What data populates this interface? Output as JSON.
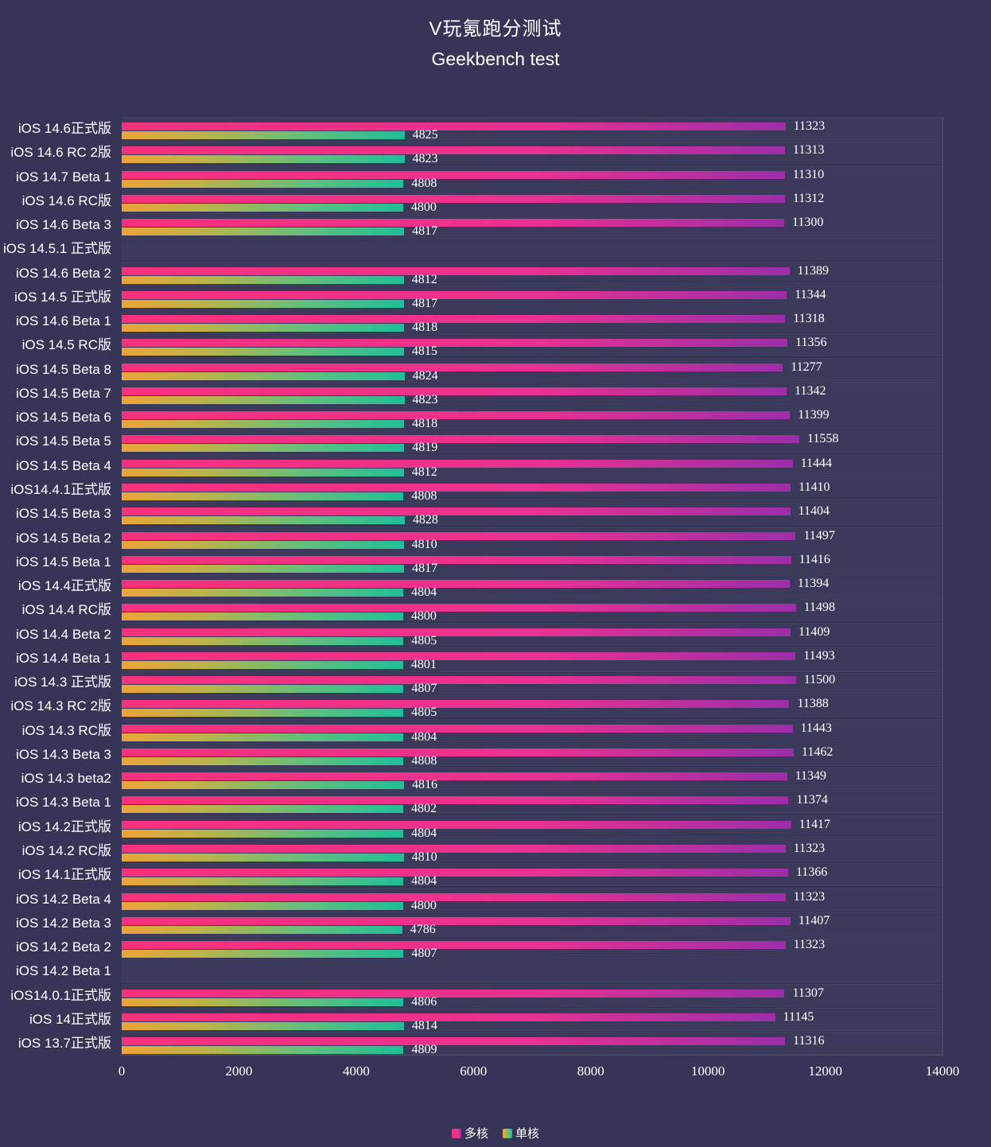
{
  "header": {
    "title": "V玩氪跑分测试",
    "subtitle": "Geekbench test"
  },
  "colors": {
    "background": "#373557",
    "text": "#ffffff",
    "plot_border": "rgba(255,255,255,0.14)",
    "multicore_start": "#f8317c",
    "multicore_end": "#9c2eaa",
    "singlecore_start": "#eda438",
    "singlecore_end": "#1fbf98"
  },
  "chart_data": {
    "type": "bar",
    "orientation": "horizontal",
    "title": "V玩氪跑分测试",
    "subtitle": "Geekbench test",
    "xlabel": "",
    "ylabel": "",
    "xlim": [
      0,
      14000
    ],
    "x_ticks": [
      0,
      2000,
      4000,
      6000,
      8000,
      10000,
      12000,
      14000
    ],
    "grid": "subtle-row-bands",
    "legend_position": "bottom",
    "value_labels": true,
    "categories": [
      "iOS 14.6正式版",
      "iOS 14.6 RC 2版",
      "iOS 14.7 Beta 1",
      "iOS 14.6 RC版",
      "iOS 14.6 Beta 3",
      "iOS 14.5.1 正式版",
      "iOS 14.6 Beta 2",
      "iOS 14.5 正式版",
      "iOS 14.6 Beta 1",
      "iOS 14.5 RC版",
      "iOS 14.5 Beta 8",
      "iOS 14.5 Beta 7",
      "iOS 14.5 Beta 6",
      "iOS 14.5 Beta 5",
      "iOS 14.5 Beta 4",
      "iOS14.4.1正式版",
      "iOS 14.5 Beta 3",
      "iOS 14.5 Beta 2",
      "iOS 14.5 Beta 1",
      "iOS 14.4正式版",
      "iOS 14.4 RC版",
      "iOS 14.4 Beta 2",
      "iOS 14.4 Beta 1",
      "iOS 14.3 正式版",
      "iOS 14.3 RC 2版",
      "iOS 14.3 RC版",
      "iOS 14.3 Beta 3",
      "iOS 14.3 beta2",
      "iOS 14.3 Beta 1",
      "iOS 14.2正式版",
      "iOS 14.2 RC版",
      "iOS 14.1正式版",
      "iOS 14.2 Beta 4",
      "iOS 14.2 Beta 3",
      "iOS 14.2 Beta 2",
      "iOS 14.2 Beta 1",
      "iOS14.0.1正式版",
      "iOS 14正式版",
      "iOS 13.7正式版"
    ],
    "series": [
      {
        "name": "多核",
        "gradient": [
          "#f8317c 0%",
          "#ea3190 62%",
          "#9c2eaa 100%"
        ],
        "values": [
          11323,
          11313,
          11310,
          11312,
          11300,
          null,
          11389,
          11344,
          11318,
          11356,
          11277,
          11342,
          11399,
          11558,
          11444,
          11410,
          11404,
          11497,
          11416,
          11394,
          11498,
          11409,
          11493,
          11500,
          11388,
          11443,
          11462,
          11349,
          11374,
          11417,
          11323,
          11366,
          11323,
          11407,
          11323,
          null,
          11307,
          11145,
          11316
        ]
      },
      {
        "name": "单核",
        "gradient": [
          "#eda438 0%",
          "#b8b44b 30%",
          "#62bf7d 65%",
          "#1fbf98 100%"
        ],
        "values": [
          4825,
          4823,
          4808,
          4800,
          4817,
          null,
          4812,
          4817,
          4818,
          4815,
          4824,
          4823,
          4818,
          4819,
          4812,
          4808,
          4828,
          4810,
          4817,
          4804,
          4800,
          4805,
          4801,
          4807,
          4805,
          4804,
          4808,
          4816,
          4802,
          4804,
          4810,
          4804,
          4800,
          4786,
          4807,
          null,
          4806,
          4814,
          4809
        ]
      }
    ]
  }
}
